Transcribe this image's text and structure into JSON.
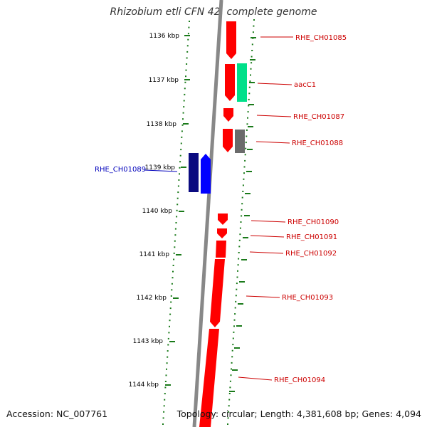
{
  "title": "Rhizobium etli CFN 42, complete genome",
  "footer": {
    "accession": "Accession: NC_007761",
    "topology": "Topology: circular; Length: 4,381,608 bp; Genes: 4,094"
  },
  "ruler_unit": "kbp",
  "ticks": [
    1136,
    1137,
    1138,
    1139,
    1140,
    1141,
    1142,
    1143,
    1144
  ],
  "colors": {
    "ruler": "#888888",
    "scale_dots": "#1a7a1a",
    "gene_red": "#ff0000",
    "gene_green": "#00e08a",
    "gene_gray": "#6b6b6b",
    "gene_navy": "#0a0a80",
    "gene_blue": "#0000ff",
    "label_red": "#cc0000",
    "label_blue": "#0000bb"
  },
  "labels": [
    {
      "text": "RHE_CH01085",
      "color": "red"
    },
    {
      "text": "aacC1",
      "color": "red"
    },
    {
      "text": "RHE_CH01087",
      "color": "red"
    },
    {
      "text": "RHE_CH01088",
      "color": "red"
    },
    {
      "text": "RHE_CH01089",
      "color": "blue"
    },
    {
      "text": "RHE_CH01090",
      "color": "red"
    },
    {
      "text": "RHE_CH01091",
      "color": "red"
    },
    {
      "text": "RHE_CH01092",
      "color": "red"
    },
    {
      "text": "RHE_CH01093",
      "color": "red"
    },
    {
      "text": "RHE_CH01094",
      "color": "red"
    }
  ]
}
